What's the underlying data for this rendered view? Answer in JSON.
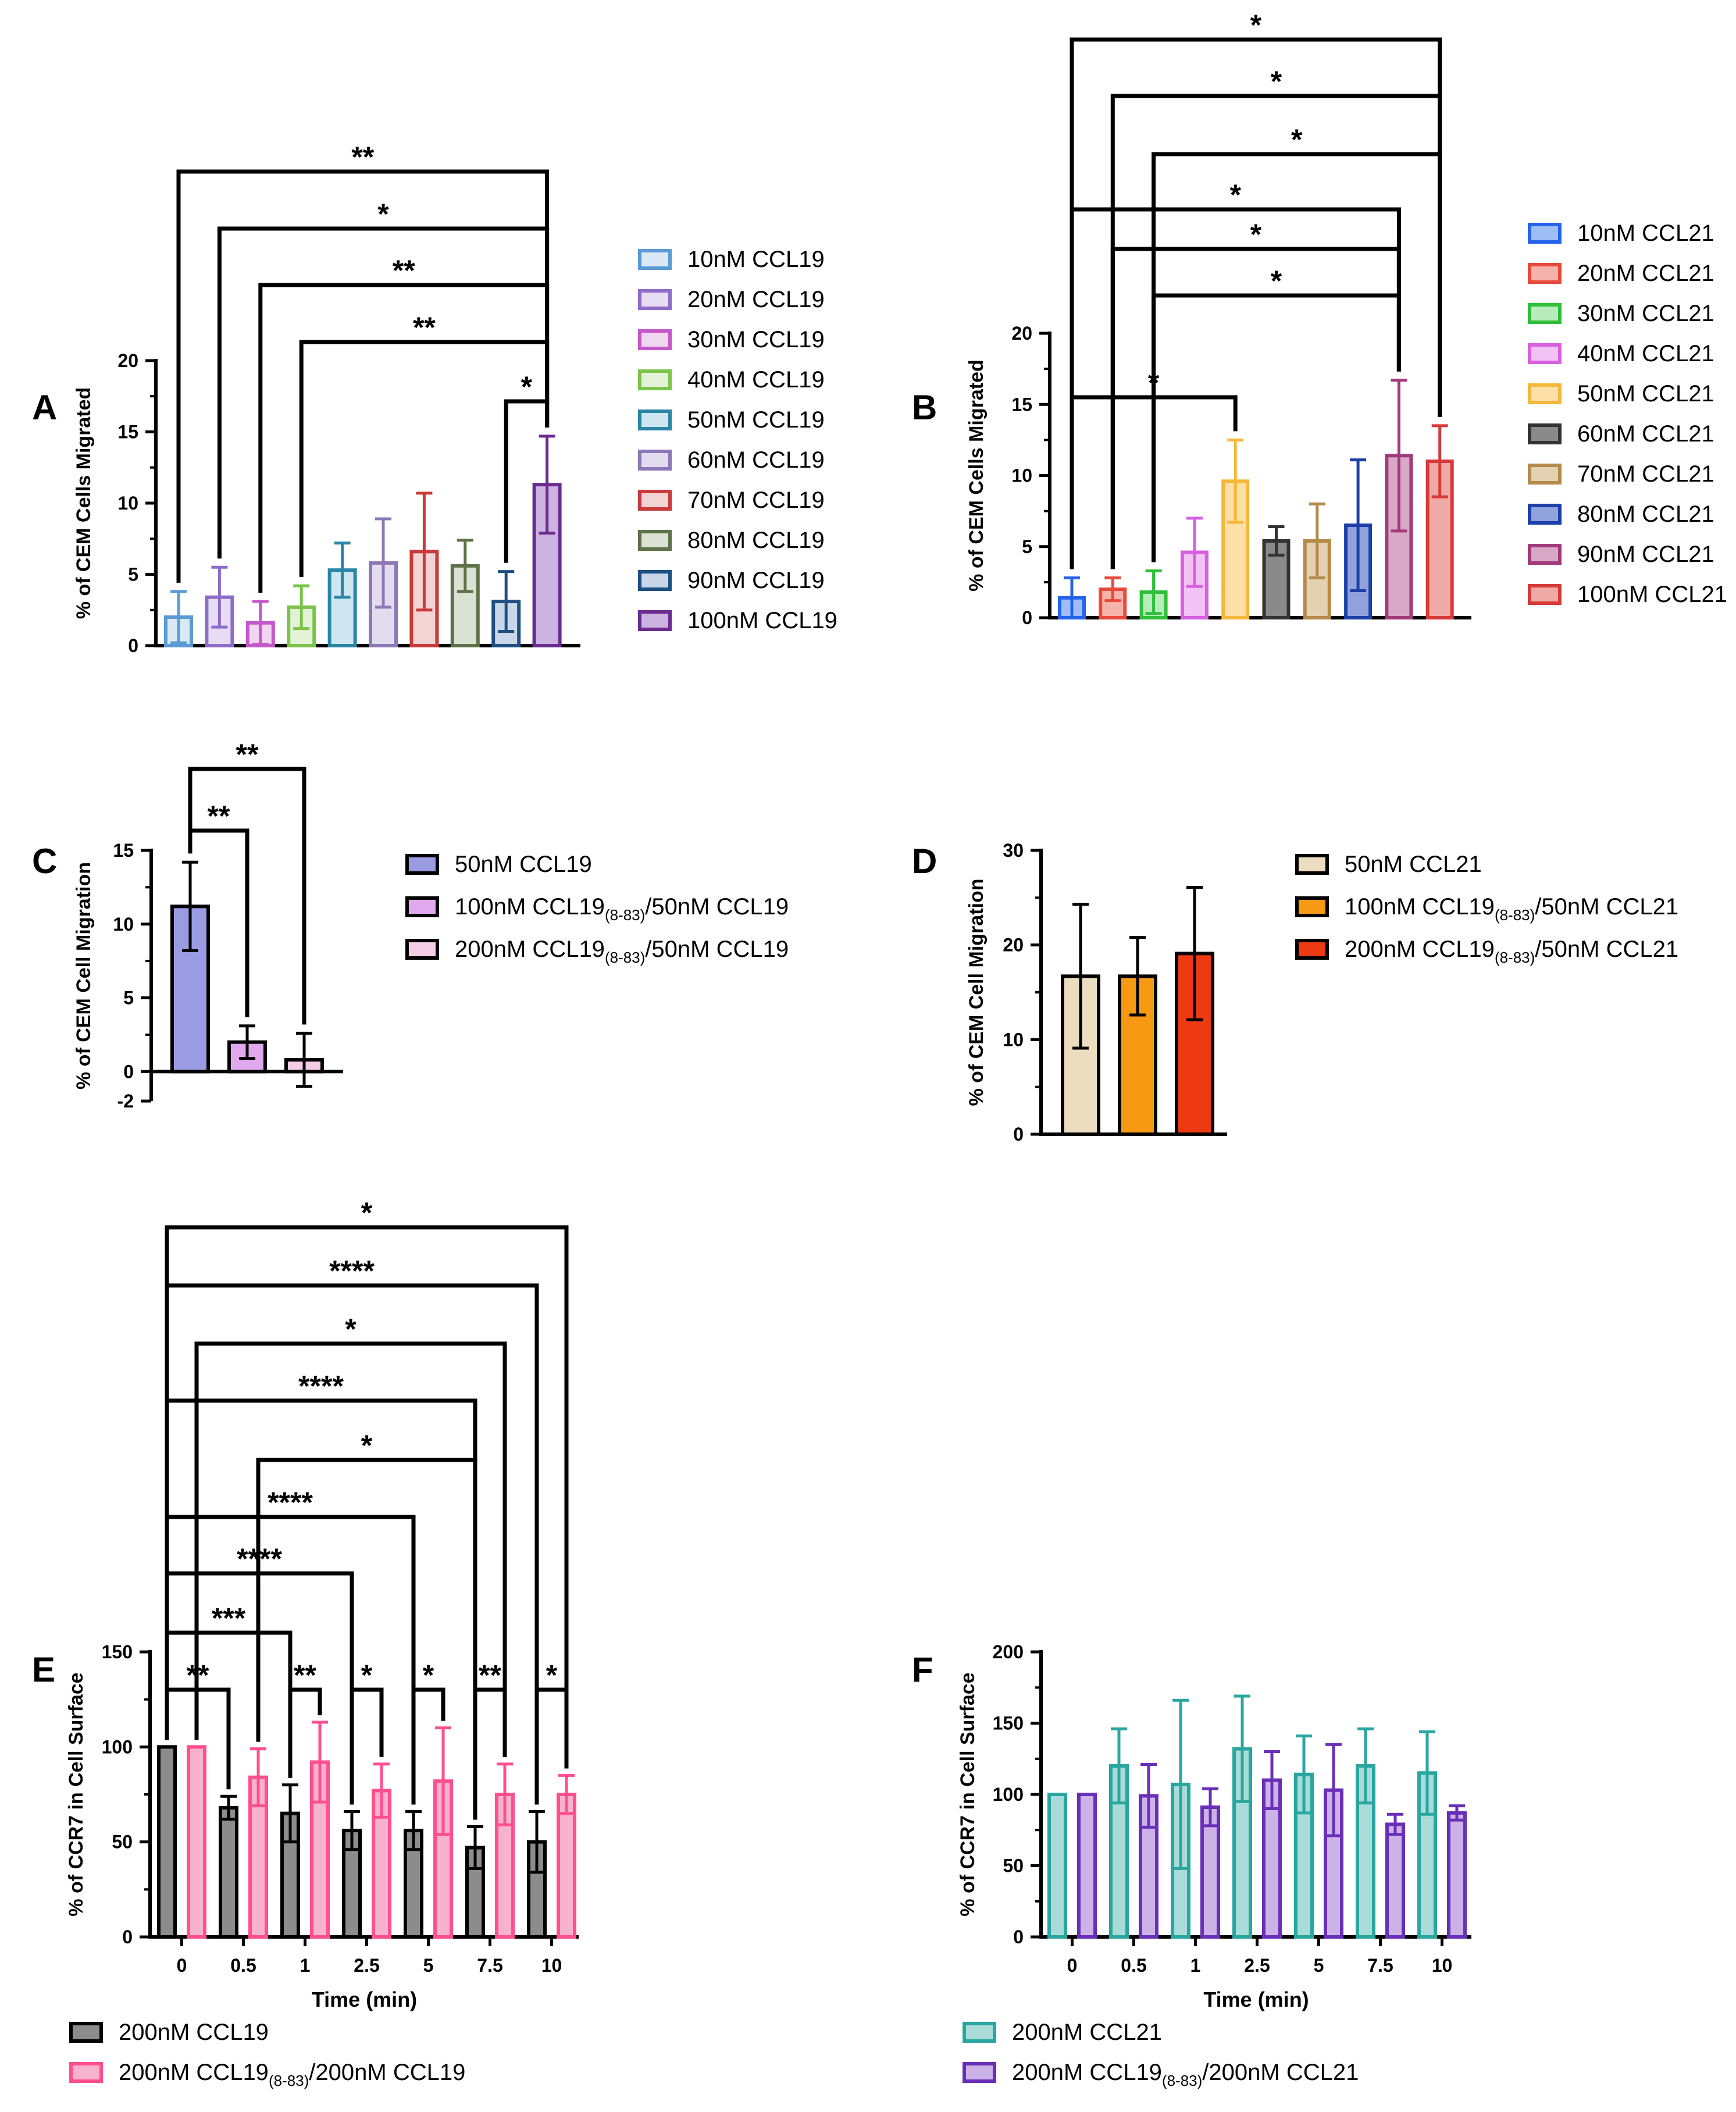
{
  "colors": {
    "axis": "#000000",
    "bracket": "#000000"
  },
  "chart_data": [
    {
      "id": "A",
      "panel_label": "A",
      "type": "bar",
      "ylabel": "% of CEM Cells Migrated",
      "xlabel": "",
      "ylim": [
        0,
        20
      ],
      "yticks": [
        0,
        5,
        10,
        15,
        20
      ],
      "categories": [
        "10nM CCL19",
        "20nM CCL19",
        "30nM CCL19",
        "40nM CCL19",
        "50nM CCL19",
        "60nM CCL19",
        "70nM CCL19",
        "80nM CCL19",
        "90nM CCL19",
        "100nM CCL19"
      ],
      "values": [
        2.0,
        3.4,
        1.6,
        2.7,
        5.3,
        5.8,
        6.6,
        5.6,
        3.1,
        11.3
      ],
      "errors": [
        1.8,
        2.1,
        1.5,
        1.5,
        1.9,
        3.1,
        4.1,
        1.8,
        2.1,
        3.4
      ],
      "colors": [
        "#5b9bd5",
        "#8e6cc9",
        "#c458c8",
        "#7cc34a",
        "#2b86a6",
        "#8d78b6",
        "#c93a3a",
        "#5e7249",
        "#1e4f83",
        "#6a2c91"
      ],
      "fills": [
        "#dbe9f7",
        "#e6ddf5",
        "#f1d6f2",
        "#e3f2d6",
        "#cde6ef",
        "#e2dcee",
        "#f3d3d3",
        "#dbe2d3",
        "#c9d7e8",
        "#cdb3df"
      ],
      "comparisons": [
        {
          "from": 0,
          "to": 9,
          "label": "**"
        },
        {
          "from": 1,
          "to": 9,
          "label": "*"
        },
        {
          "from": 2,
          "to": 9,
          "label": "**"
        },
        {
          "from": 3,
          "to": 9,
          "label": "**"
        },
        {
          "from": 8,
          "to": 9,
          "label": "*"
        }
      ]
    },
    {
      "id": "B",
      "panel_label": "B",
      "type": "bar",
      "ylabel": "% of CEM Cells Migrated",
      "xlabel": "",
      "ylim": [
        0,
        20
      ],
      "yticks": [
        0,
        5,
        10,
        15,
        20
      ],
      "categories": [
        "10nM CCL21",
        "20nM CCL21",
        "30nM CCL21",
        "40nM CCL21",
        "50nM CCL21",
        "60nM CCL21",
        "70nM CCL21",
        "80nM CCL21",
        "90nM CCL21",
        "100nM CCL21"
      ],
      "values": [
        1.4,
        2.0,
        1.8,
        4.6,
        9.6,
        5.4,
        5.4,
        6.5,
        11.4,
        11.0
      ],
      "errors": [
        1.4,
        0.8,
        1.5,
        2.4,
        2.9,
        1.0,
        2.6,
        4.6,
        5.3,
        2.5
      ],
      "colors": [
        "#2563eb",
        "#e64a3a",
        "#2fbf3a",
        "#d760e0",
        "#f5b83a",
        "#333333",
        "#b58a4a",
        "#1d3fa8",
        "#a13a7c",
        "#d63a3a"
      ],
      "fills": [
        "#9fbdf5",
        "#f6b3ab",
        "#b8ecbb",
        "#f2c2f5",
        "#fde0a8",
        "#8a8a8a",
        "#e3d1b2",
        "#8fa2dc",
        "#d7a9c6",
        "#f0aaa6"
      ],
      "comparisons": [
        {
          "from": 0,
          "to": 9,
          "label": "*"
        },
        {
          "from": 1,
          "to": 9,
          "label": "*"
        },
        {
          "from": 2,
          "to": 9,
          "label": "*"
        },
        {
          "from": 0,
          "to": 8,
          "label": "*"
        },
        {
          "from": 1,
          "to": 8,
          "label": "*"
        },
        {
          "from": 2,
          "to": 8,
          "label": "*"
        },
        {
          "from": 0,
          "to": 4,
          "label": "*"
        }
      ]
    },
    {
      "id": "C",
      "panel_label": "C",
      "type": "bar",
      "ylabel": "% of CEM Cell Migration",
      "xlabel": "",
      "ylim": [
        -2,
        15
      ],
      "yticks": [
        -2,
        0,
        5,
        10,
        15
      ],
      "categories": [
        "50nM CCL19",
        "100nM CCL19(8-83)/50nM CCL19",
        "200nM CCL19(8-83)/50nM CCL19"
      ],
      "legend": [
        {
          "pre": "50nM CCL19",
          "sub": "",
          "post": ""
        },
        {
          "pre": "100nM CCL19",
          "sub": "(8-83)",
          "post": "/50nM CCL19"
        },
        {
          "pre": "200nM CCL19",
          "sub": "(8-83)",
          "post": "/50nM CCL19"
        }
      ],
      "values": [
        11.2,
        2.0,
        0.8
      ],
      "errors": [
        3.0,
        1.1,
        1.8
      ],
      "colors": [
        "#000000",
        "#000000",
        "#000000"
      ],
      "fills": [
        "#9b9be3",
        "#e0a9ee",
        "#f5cde7"
      ],
      "comparisons": [
        {
          "from": 0,
          "to": 2,
          "label": "**"
        },
        {
          "from": 0,
          "to": 1,
          "label": "**"
        }
      ]
    },
    {
      "id": "D",
      "panel_label": "D",
      "type": "bar",
      "ylabel": "% of CEM Cell Migration",
      "xlabel": "",
      "ylim": [
        0,
        30
      ],
      "yticks": [
        0,
        10,
        20,
        30
      ],
      "categories": [
        "50nM CCL21",
        "100nM CCL19(8-83)/50nM CCL21",
        "200nM CCL19(8-83)/50nM CCL21"
      ],
      "legend": [
        {
          "pre": "50nM CCL21",
          "sub": "",
          "post": ""
        },
        {
          "pre": "100nM CCL19",
          "sub": "(8-83)",
          "post": "/50nM CCL21"
        },
        {
          "pre": "200nM CCL19",
          "sub": "(8-83)",
          "post": "/50nM CCL21"
        }
      ],
      "values": [
        16.7,
        16.7,
        19.1
      ],
      "errors": [
        7.6,
        4.1,
        7.0
      ],
      "colors": [
        "#000000",
        "#000000",
        "#000000"
      ],
      "fills": [
        "#ecdcc0",
        "#f59a12",
        "#ee3a12"
      ],
      "comparisons": []
    },
    {
      "id": "E",
      "panel_label": "E",
      "type": "bar",
      "xlabel": "Time (min)",
      "ylabel": "% of CCR7 in Cell Surface",
      "ylim": [
        0,
        150
      ],
      "yticks": [
        0,
        50,
        100,
        150
      ],
      "categories": [
        "0",
        "0.5",
        "1",
        "2.5",
        "5",
        "7.5",
        "10"
      ],
      "series": [
        {
          "name": "200nM CCL19",
          "pre": "200nM CCL19",
          "sub": "",
          "post": "",
          "color": "#000000",
          "fill": "#8c8c8c",
          "values": [
            100,
            68,
            65,
            56,
            56,
            47,
            50
          ],
          "errors": [
            0,
            6,
            15,
            10,
            10,
            11,
            16
          ]
        },
        {
          "name": "200nM CCL19(8-83)/200nM CCL19",
          "pre": "200nM CCL19",
          "sub": "(8-83)",
          "post": "/200nM CCL19",
          "color": "#ff4f8f",
          "fill": "#f8b3cc",
          "values": [
            100,
            84,
            92,
            77,
            82,
            75,
            75
          ],
          "errors": [
            0,
            15,
            21,
            14,
            28,
            16,
            10
          ]
        }
      ],
      "comparisons": [
        {
          "from": [
            0,
            0
          ],
          "to": [
            6,
            1
          ],
          "label": "*"
        },
        {
          "from": [
            0,
            0
          ],
          "to": [
            6,
            0
          ],
          "label": "****"
        },
        {
          "from": [
            0,
            1
          ],
          "to": [
            5,
            1
          ],
          "label": "*"
        },
        {
          "from": [
            0,
            0
          ],
          "to": [
            5,
            0
          ],
          "label": "****"
        },
        {
          "from": [
            1,
            1
          ],
          "to": [
            5,
            0
          ],
          "label": "*"
        },
        {
          "from": [
            0,
            0
          ],
          "to": [
            4,
            0
          ],
          "label": "****"
        },
        {
          "from": [
            0,
            0
          ],
          "to": [
            3,
            0
          ],
          "label": "****"
        },
        {
          "from": [
            0,
            0
          ],
          "to": [
            2,
            0
          ],
          "label": "***"
        },
        {
          "from": [
            0,
            0
          ],
          "to": [
            1,
            0
          ],
          "label": "**"
        },
        {
          "from": [
            2,
            0
          ],
          "to": [
            2,
            1
          ],
          "label": "**"
        },
        {
          "from": [
            3,
            0
          ],
          "to": [
            3,
            1
          ],
          "label": "*"
        },
        {
          "from": [
            4,
            0
          ],
          "to": [
            4,
            1
          ],
          "label": "*"
        },
        {
          "from": [
            5,
            0
          ],
          "to": [
            5,
            1
          ],
          "label": "**"
        },
        {
          "from": [
            6,
            0
          ],
          "to": [
            6,
            1
          ],
          "label": "*"
        }
      ]
    },
    {
      "id": "F",
      "panel_label": "F",
      "type": "bar",
      "xlabel": "Time (min)",
      "ylabel": "% of CCR7 in Cell Surface",
      "ylim": [
        0,
        200
      ],
      "yticks": [
        0,
        50,
        100,
        150,
        200
      ],
      "categories": [
        "0",
        "0.5",
        "1",
        "2.5",
        "5",
        "7.5",
        "10"
      ],
      "series": [
        {
          "name": "200nM CCL21",
          "pre": "200nM CCL21",
          "sub": "",
          "post": "",
          "color": "#2aa6a0",
          "fill": "#a9dcd8",
          "values": [
            100,
            120,
            107,
            132,
            114,
            120,
            115
          ],
          "errors": [
            0,
            26,
            59,
            37,
            27,
            26,
            29
          ]
        },
        {
          "name": "200nM CCL19(8-83)/200nM CCL21",
          "pre": "200nM CCL19",
          "sub": "(8-83)",
          "post": "/200nM CCL21",
          "color": "#6a2fb8",
          "fill": "#cbb3e8",
          "values": [
            100,
            99,
            91,
            110,
            103,
            79,
            87
          ],
          "errors": [
            0,
            22,
            13,
            20,
            32,
            7,
            5
          ]
        }
      ],
      "comparisons": []
    }
  ]
}
